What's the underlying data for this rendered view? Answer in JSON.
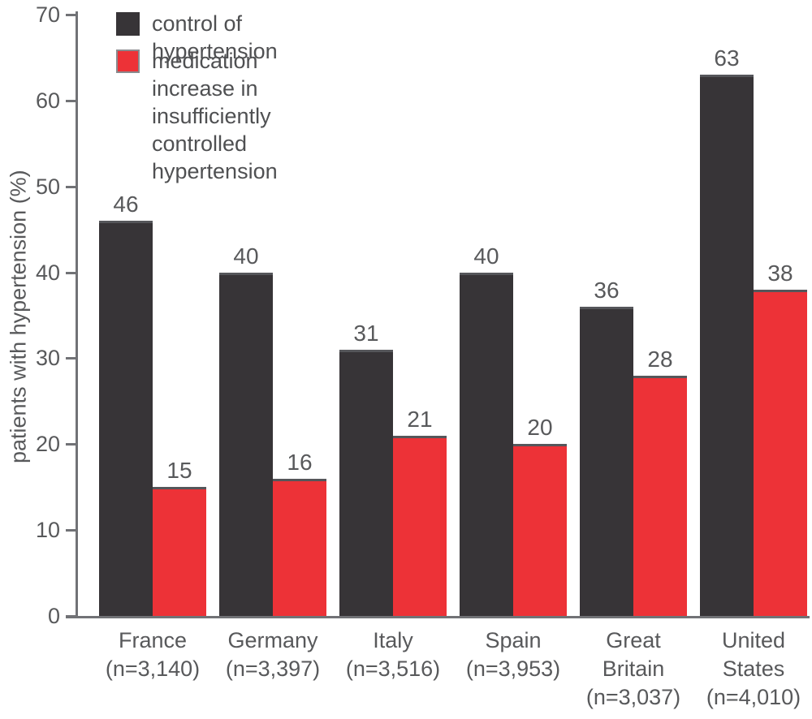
{
  "figure": {
    "legend": [
      {
        "label": "control of hypertension",
        "color": "#373437",
        "outlined": false
      },
      {
        "label": "medication increase in insufficiently\ncontrolled hypertension",
        "color": "#ed3237",
        "outlined": true
      }
    ],
    "colors": {
      "axis": "#717276",
      "text": "#58595b",
      "bar_dark": "#373437",
      "bar_red": "#ed3237",
      "bar_cap": "#55565a"
    }
  },
  "chart_data": {
    "type": "bar",
    "title": "",
    "xlabel": "",
    "ylabel": "patients with hypertension (%)",
    "ylim": [
      0,
      70
    ],
    "yticks": [
      0,
      10,
      20,
      30,
      40,
      50,
      60,
      70
    ],
    "grid": false,
    "legend_position": "top-left",
    "categories": [
      "France",
      "Germany",
      "Italy",
      "Spain",
      "Great Britain",
      "United States"
    ],
    "n_labels": [
      "(n=3,140)",
      "(n=3,397)",
      "(n=3,516)",
      "(n=3,953)",
      "(n=3,037)",
      "(n=4,010)"
    ],
    "series": [
      {
        "name": "control of hypertension",
        "color": "#373437",
        "values": [
          46,
          40,
          31,
          40,
          36,
          63
        ]
      },
      {
        "name": "medication increase in insufficiently controlled hypertension",
        "color": "#ed3237",
        "values": [
          15,
          16,
          21,
          20,
          28,
          38
        ]
      }
    ]
  }
}
